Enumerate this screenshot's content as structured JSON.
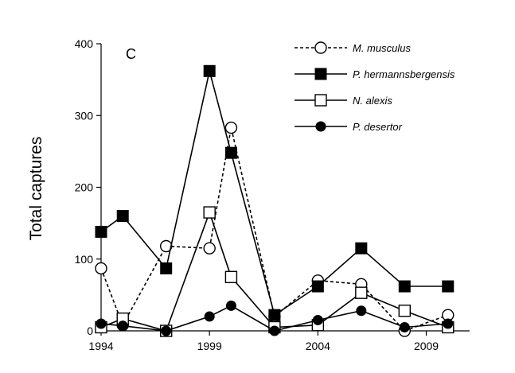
{
  "chart_data": {
    "type": "line",
    "panel_label": "C",
    "ylabel": "Total captures",
    "xlabel": "",
    "xlim": [
      1994,
      2011
    ],
    "ylim": [
      0,
      400
    ],
    "xticks": [
      1994,
      1999,
      2004,
      2009
    ],
    "yticks": [
      0,
      100,
      200,
      300,
      400
    ],
    "grid": false,
    "legend": "top-right",
    "series": [
      {
        "name": "M. musculus",
        "style": "dashed",
        "marker": "circle-open",
        "x": [
          1994,
          1995,
          1997,
          1999,
          2000,
          2002,
          2004,
          2006,
          2008,
          2010
        ],
        "y": [
          87,
          8,
          118,
          115,
          283,
          20,
          70,
          65,
          0,
          22
        ]
      },
      {
        "name": "P. hermannsbergensis",
        "style": "solid",
        "marker": "square-filled",
        "x": [
          1994,
          1995,
          1997,
          1999,
          2000,
          2002,
          2004,
          2006,
          2008,
          2010
        ],
        "y": [
          138,
          160,
          87,
          362,
          248,
          22,
          62,
          115,
          62,
          62
        ]
      },
      {
        "name": "N. alexis",
        "style": "solid",
        "marker": "square-open",
        "x": [
          1994,
          1995,
          1997,
          1999,
          2000,
          2002,
          2004,
          2006,
          2008,
          2010
        ],
        "y": [
          5,
          17,
          0,
          165,
          75,
          5,
          8,
          53,
          28,
          5
        ]
      },
      {
        "name": "P. desertor",
        "style": "solid",
        "marker": "circle-filled",
        "x": [
          1994,
          1995,
          1997,
          1999,
          2000,
          2002,
          2004,
          2006,
          2008,
          2010
        ],
        "y": [
          10,
          7,
          0,
          20,
          35,
          0,
          15,
          28,
          5,
          10
        ]
      }
    ]
  }
}
